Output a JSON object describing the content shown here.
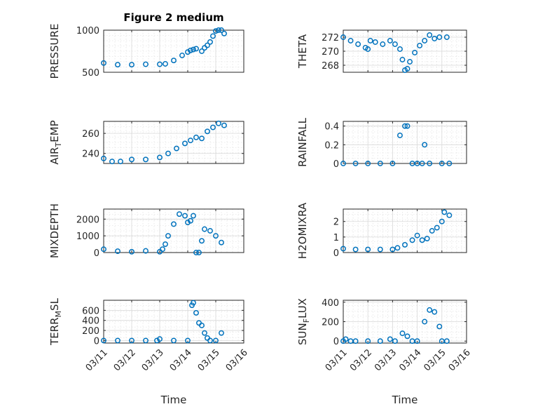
{
  "figure": {
    "color": "#0072BD",
    "xlabel": "Time",
    "xticks": [
      "03/11",
      "03/12",
      "03/13",
      "03/14",
      "03/15",
      "03/16"
    ]
  },
  "chart_data": [
    {
      "type": "scatter",
      "title": "Figure 2 medium",
      "ylabel": "PRESSURE",
      "ylim": [
        500,
        1000
      ],
      "yticks": [
        500,
        1000
      ],
      "xlim": [
        0,
        5
      ],
      "grid": true,
      "x": [
        0,
        0.5,
        1.0,
        1.5,
        2.0,
        2.2,
        2.5,
        2.8,
        3.0,
        3.1,
        3.2,
        3.3,
        3.5,
        3.6,
        3.7,
        3.8,
        3.9,
        4.0,
        4.1,
        4.2,
        4.3
      ],
      "y": [
        610,
        590,
        590,
        595,
        595,
        600,
        640,
        700,
        740,
        760,
        770,
        780,
        750,
        790,
        820,
        860,
        930,
        990,
        1000,
        1000,
        960
      ]
    },
    {
      "type": "scatter",
      "title": "",
      "ylabel": "THETA",
      "ylim": [
        267,
        273
      ],
      "yticks": [
        268,
        270,
        272
      ],
      "xlim": [
        0,
        5
      ],
      "grid": true,
      "x": [
        0,
        0.3,
        0.6,
        0.9,
        1.0,
        1.1,
        1.3,
        1.6,
        1.9,
        2.1,
        2.3,
        2.4,
        2.5,
        2.6,
        2.7,
        2.9,
        3.1,
        3.3,
        3.5,
        3.7,
        3.9,
        4.2
      ],
      "y": [
        272,
        271.5,
        271,
        270.5,
        270.3,
        271.5,
        271.3,
        271,
        271.5,
        271,
        270.3,
        268.8,
        267.3,
        267.5,
        268.5,
        269.8,
        270.8,
        271.5,
        272.3,
        271.8,
        272,
        272
      ]
    },
    {
      "type": "scatter",
      "title": "",
      "ylabel": "AIR_TEMP",
      "ylim": [
        230,
        272
      ],
      "yticks": [
        240,
        260
      ],
      "xlim": [
        0,
        5
      ],
      "grid": true,
      "x": [
        0,
        0.3,
        0.6,
        1.0,
        1.5,
        2.0,
        2.3,
        2.6,
        2.9,
        3.1,
        3.3,
        3.5,
        3.7,
        3.9,
        4.1,
        4.3
      ],
      "y": [
        235,
        232,
        232,
        234,
        234,
        236,
        240,
        245,
        250,
        253,
        256,
        255,
        262,
        266,
        270,
        268
      ]
    },
    {
      "type": "scatter",
      "title": "",
      "ylabel": "RAINFALL",
      "ylim": [
        0,
        0.45
      ],
      "yticks": [
        0,
        0.2,
        0.4
      ],
      "xlim": [
        0,
        5
      ],
      "grid": true,
      "x": [
        0,
        0.5,
        1.0,
        1.5,
        2.0,
        2.3,
        2.5,
        2.6,
        2.8,
        3.0,
        3.2,
        3.3,
        3.5,
        4.0,
        4.3
      ],
      "y": [
        0,
        0,
        0,
        0,
        0,
        0.3,
        0.4,
        0.4,
        0,
        0,
        0,
        0.2,
        0,
        0,
        0
      ]
    },
    {
      "type": "scatter",
      "title": "",
      "ylabel": "MIXDEPTH",
      "ylim": [
        0,
        2600
      ],
      "yticks": [
        0,
        1000,
        2000
      ],
      "xlim": [
        0,
        5
      ],
      "grid": true,
      "x": [
        0,
        0.5,
        1.0,
        1.5,
        2.0,
        2.1,
        2.2,
        2.3,
        2.5,
        2.7,
        2.9,
        3.0,
        3.1,
        3.2,
        3.3,
        3.4,
        3.5,
        3.6,
        3.8,
        4.0,
        4.2
      ],
      "y": [
        200,
        80,
        50,
        100,
        50,
        200,
        500,
        1000,
        1700,
        2300,
        2200,
        1800,
        1900,
        2200,
        0,
        0,
        700,
        1400,
        1300,
        1000,
        600
      ]
    },
    {
      "type": "scatter",
      "title": "",
      "ylabel": "H2OMIXRA",
      "ylim": [
        0,
        2.8
      ],
      "yticks": [
        0,
        1,
        2
      ],
      "xlim": [
        0,
        5
      ],
      "grid": true,
      "x": [
        0,
        0.5,
        1.0,
        1.5,
        2.0,
        2.2,
        2.5,
        2.8,
        3.0,
        3.2,
        3.4,
        3.6,
        3.8,
        4.0,
        4.1,
        4.3
      ],
      "y": [
        0.25,
        0.2,
        0.2,
        0.2,
        0.2,
        0.3,
        0.5,
        0.8,
        1.1,
        0.8,
        0.9,
        1.4,
        1.6,
        2.0,
        2.6,
        2.4
      ]
    },
    {
      "type": "scatter",
      "title": "",
      "ylabel": "TERR_MSL",
      "ylim": [
        -50,
        800
      ],
      "yticks": [
        0,
        200,
        400,
        600
      ],
      "xlim": [
        0,
        5
      ],
      "grid": true,
      "x": [
        0,
        0.5,
        1.0,
        1.5,
        1.9,
        2.0,
        2.5,
        3.0,
        3.15,
        3.2,
        3.3,
        3.4,
        3.5,
        3.6,
        3.7,
        3.8,
        4.0,
        4.2
      ],
      "y": [
        0,
        0,
        0,
        0,
        0,
        30,
        0,
        0,
        700,
        750,
        550,
        350,
        300,
        150,
        50,
        0,
        0,
        150
      ]
    },
    {
      "type": "scatter",
      "title": "",
      "ylabel": "SUN_FLUX",
      "ylim": [
        -20,
        420
      ],
      "yticks": [
        0,
        200,
        400
      ],
      "xlim": [
        0,
        5
      ],
      "grid": true,
      "x": [
        0,
        0.1,
        0.3,
        0.5,
        1.0,
        1.5,
        1.9,
        2.1,
        2.4,
        2.6,
        2.8,
        3.0,
        3.3,
        3.5,
        3.7,
        3.9,
        4.0,
        4.2
      ],
      "y": [
        0,
        20,
        0,
        0,
        0,
        0,
        20,
        0,
        80,
        50,
        0,
        0,
        200,
        320,
        300,
        150,
        0,
        0
      ]
    }
  ]
}
